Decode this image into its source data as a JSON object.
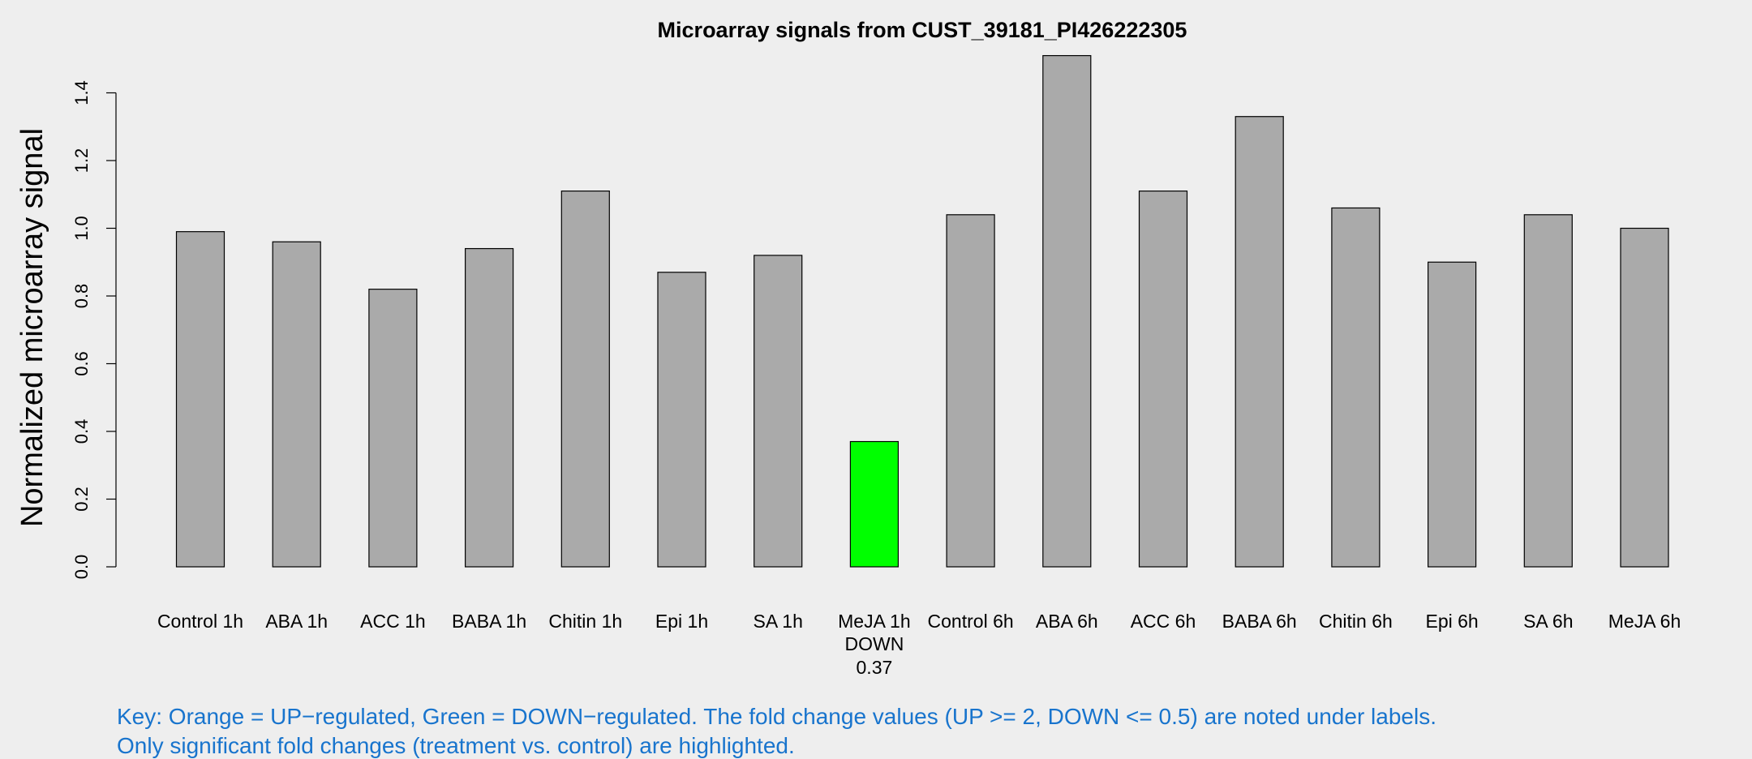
{
  "chart_data": {
    "type": "bar",
    "title": "Microarray signals from CUST_39181_PI426222305",
    "xlabel": "",
    "ylabel": "Normalized microarray signal",
    "ylim": [
      0,
      1.5
    ],
    "yticks": [
      "0.0",
      "0.2",
      "0.4",
      "0.6",
      "0.8",
      "1.0",
      "1.2",
      "1.4"
    ],
    "categories": [
      "Control 1h",
      "ABA 1h",
      "ACC 1h",
      "BABA 1h",
      "Chitin 1h",
      "Epi 1h",
      "SA 1h",
      "MeJA 1h",
      "Control 6h",
      "ABA 6h",
      "ACC 6h",
      "BABA 6h",
      "Chitin 6h",
      "Epi 6h",
      "SA 6h",
      "MeJA 6h"
    ],
    "values": [
      0.99,
      0.96,
      0.82,
      0.94,
      1.11,
      0.87,
      0.92,
      0.37,
      1.04,
      1.51,
      1.11,
      1.33,
      1.06,
      0.9,
      1.04,
      1.0
    ],
    "highlight": [
      {
        "index": 7,
        "direction": "DOWN",
        "fold_change": "0.37"
      }
    ],
    "grid": false,
    "legend": "none",
    "colors": {
      "default_bar": "#aaaaaa",
      "down": "#00ff00",
      "up": "#ffa500",
      "key_text": "#1874cd",
      "background": "#eeeeee"
    }
  },
  "key": {
    "line1": "Key: Orange = UP−regulated, Green = DOWN−regulated. The fold change values (UP >= 2, DOWN <= 0.5) are noted under labels.",
    "line2": "Only significant fold changes (treatment vs. control) are highlighted."
  }
}
